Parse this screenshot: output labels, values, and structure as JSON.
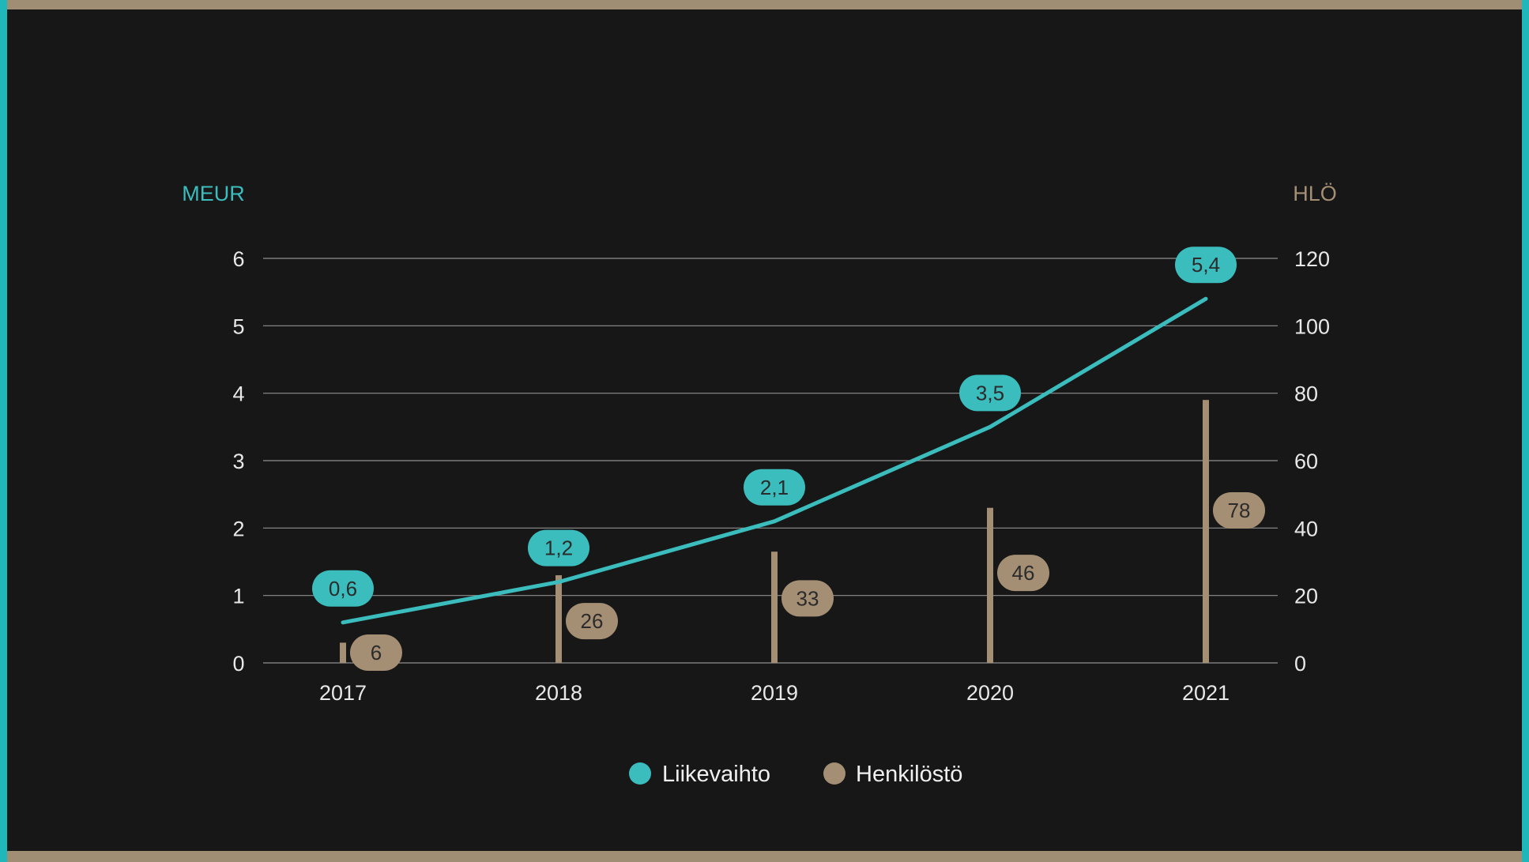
{
  "colors": {
    "revenue": "#3bbcbd",
    "staff": "#a58f74",
    "grid": "#8f8f8f",
    "background": "#171717"
  },
  "chart_data": {
    "type": "bar",
    "categories": [
      "2017",
      "2018",
      "2019",
      "2020",
      "2021"
    ],
    "series": [
      {
        "name": "Liikevaihto",
        "type": "line",
        "axis": "left",
        "values": [
          0.6,
          1.2,
          2.1,
          3.5,
          5.4
        ],
        "labels": [
          "0,6",
          "1,2",
          "2,1",
          "3,5",
          "5,4"
        ]
      },
      {
        "name": "Henkilöstö",
        "type": "bar",
        "axis": "right",
        "values": [
          6,
          26,
          33,
          46,
          78
        ],
        "labels": [
          "6",
          "26",
          "33",
          "46",
          "78"
        ]
      }
    ],
    "y_left": {
      "label": "MEUR",
      "ylim": [
        0,
        6
      ],
      "ticks": [
        "0",
        "1",
        "2",
        "3",
        "4",
        "5",
        "6"
      ]
    },
    "y_right": {
      "label": "HLÖ",
      "ylim": [
        0,
        120
      ],
      "ticks": [
        "0",
        "20",
        "40",
        "60",
        "80",
        "100",
        "120"
      ]
    },
    "grid": true,
    "legend": {
      "placement": "bottom-center",
      "items": [
        "Liikevaihto",
        "Henkilöstö"
      ]
    }
  }
}
